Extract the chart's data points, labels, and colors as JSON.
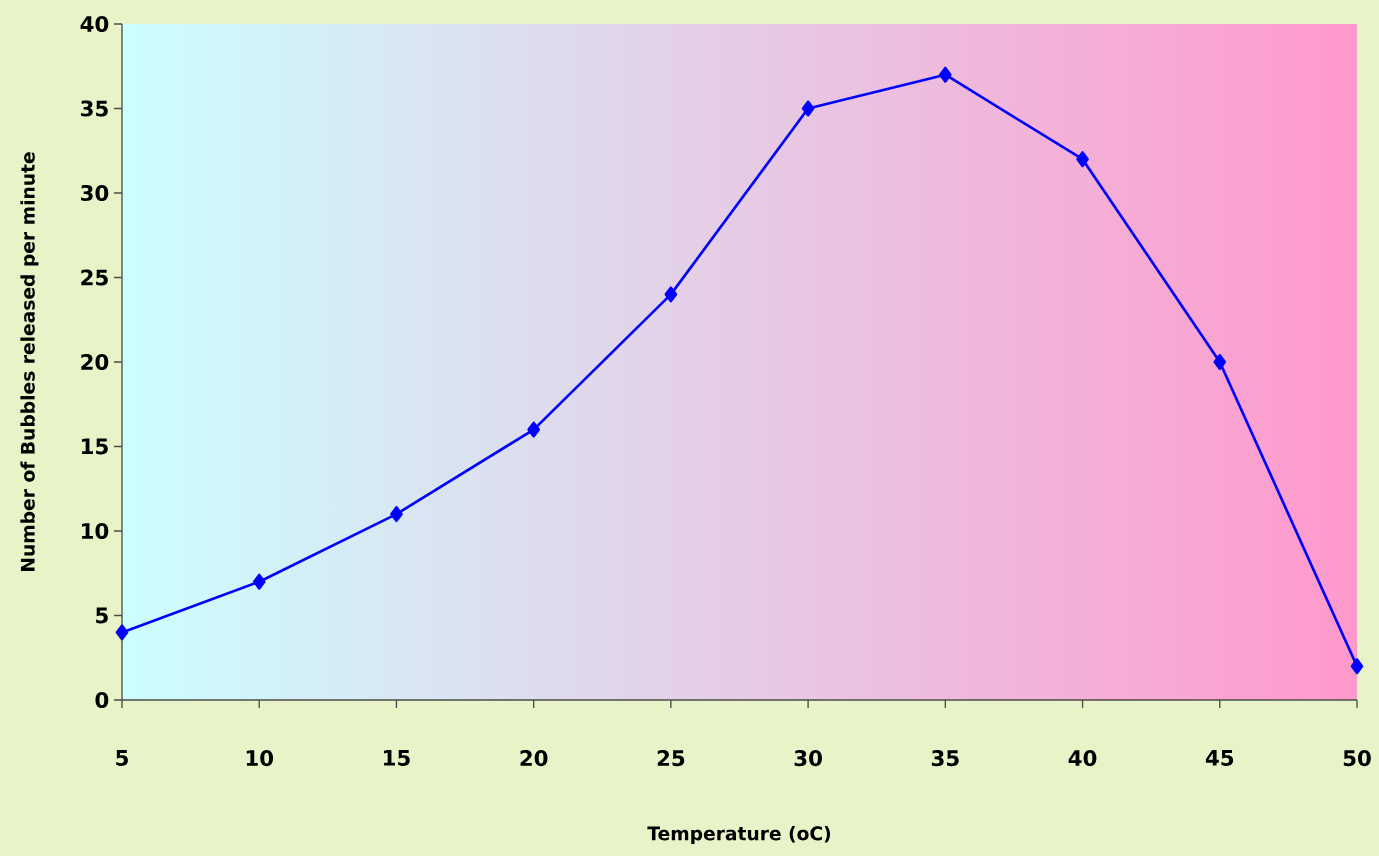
{
  "chart_data": {
    "type": "line",
    "xlabel": "Temperature (oC)",
    "ylabel": "Number of Bubbles released per minute",
    "x": [
      5,
      10,
      15,
      20,
      25,
      30,
      35,
      40,
      45,
      50
    ],
    "series": [
      {
        "color": "#0000ff",
        "values": [
          4,
          7,
          11,
          16,
          24,
          35,
          37,
          32,
          20,
          2
        ]
      }
    ],
    "xlim": [
      5,
      50
    ],
    "xticks": [
      5,
      10,
      15,
      20,
      25,
      30,
      35,
      40,
      45,
      50
    ],
    "ylim": [
      0,
      40
    ],
    "yticks": [
      0,
      5,
      10,
      15,
      20,
      25,
      30,
      35,
      40
    ],
    "grid": false,
    "marker": "diamond",
    "line_style": "solid"
  }
}
